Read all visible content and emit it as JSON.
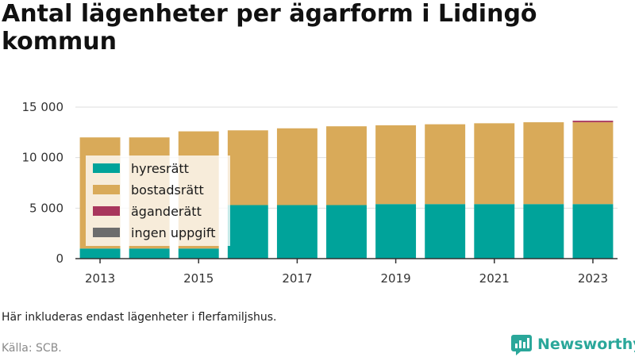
{
  "title": "Antal lägenheter per ägarform i Lidingö kommun",
  "note": "Här inkluderas endast lägenheter i flerfamiljshus.",
  "source": "Källa: SCB.",
  "brand": "Newsworthy",
  "colors": {
    "hyresratt": "#00a39a",
    "bostadsratt": "#d9aa59",
    "aganderatt": "#a8365c",
    "ingen_uppgift": "#6d6d6d",
    "grid": "#dedede",
    "axis": "#333333",
    "brand": "#2aa79a"
  },
  "chart_data": {
    "type": "bar",
    "stacked": true,
    "categories": [
      "2013",
      "2014",
      "2015",
      "2016",
      "2017",
      "2018",
      "2019",
      "2020",
      "2021",
      "2022",
      "2023"
    ],
    "x_tick_labels": [
      "2013",
      "2015",
      "2017",
      "2019",
      "2021",
      "2023"
    ],
    "y_tick_labels": [
      "0",
      "5 000",
      "10 000",
      "15 000"
    ],
    "y_ticks": [
      0,
      5000,
      10000,
      15000
    ],
    "ylim": [
      0,
      15000
    ],
    "grid": true,
    "legend_position": "top-left",
    "series": [
      {
        "name": "hyresrätt",
        "color_key": "hyresratt",
        "values": [
          1000,
          1000,
          1000,
          5300,
          5300,
          5300,
          5400,
          5400,
          5400,
          5400,
          5400
        ]
      },
      {
        "name": "bostadsrätt",
        "color_key": "bostadsratt",
        "values": [
          11000,
          11000,
          11600,
          7400,
          7600,
          7800,
          7800,
          7900,
          8000,
          8100,
          8100
        ]
      },
      {
        "name": "äganderätt",
        "color_key": "aganderatt",
        "values": [
          0,
          0,
          0,
          0,
          0,
          0,
          0,
          0,
          0,
          0,
          150
        ]
      },
      {
        "name": "ingen uppgift",
        "color_key": "ingen_uppgift",
        "values": [
          0,
          0,
          0,
          0,
          0,
          0,
          0,
          0,
          0,
          0,
          0
        ]
      }
    ]
  }
}
